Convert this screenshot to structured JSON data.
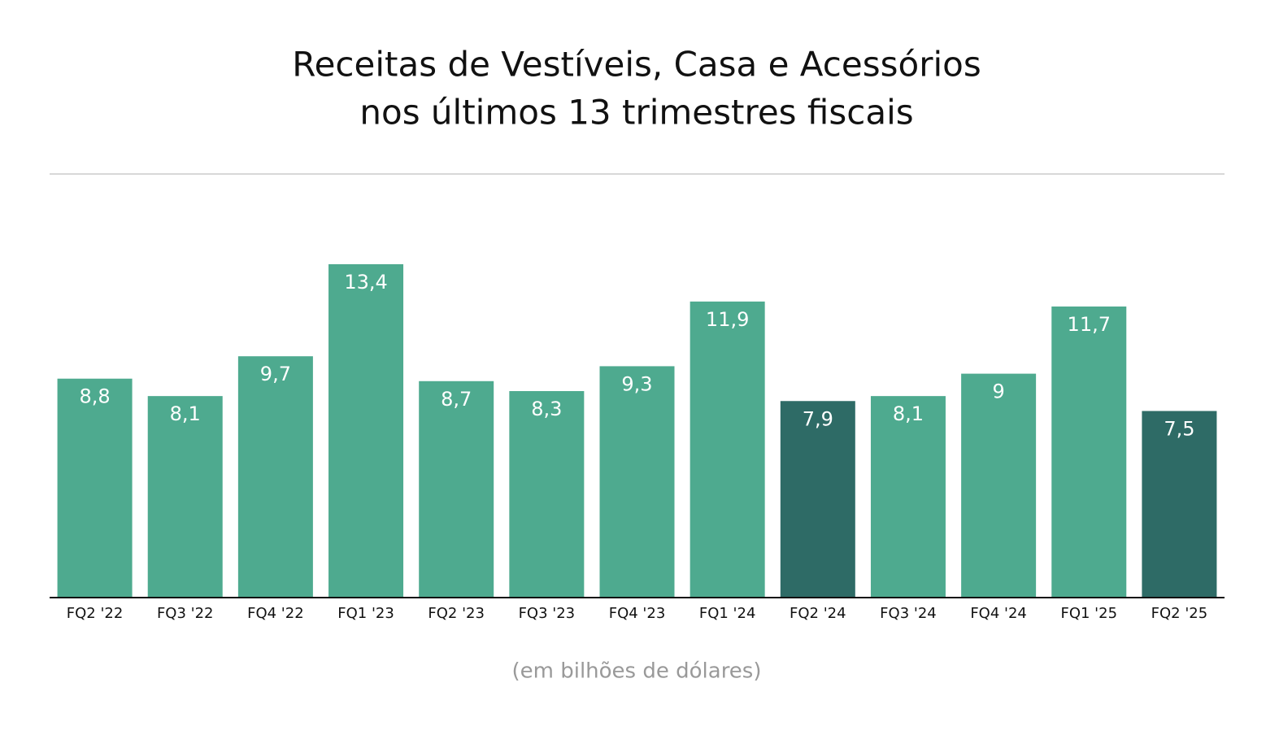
{
  "chart_data": {
    "type": "bar",
    "title": [
      "Receitas de Vestíveis, Casa e Acessórios",
      "nos últimos 13 trimestres fiscais"
    ],
    "unit_label": "(em bilhões de dólares)",
    "categories": [
      "FQ2 '22",
      "FQ3 '22",
      "FQ4 '22",
      "FQ1 '23",
      "FQ2 '23",
      "FQ3 '23",
      "FQ4 '23",
      "FQ1 '24",
      "FQ2 '24",
      "FQ3 '24",
      "FQ4 '24",
      "FQ1 '25",
      "FQ2 '25"
    ],
    "values": [
      8.8,
      8.1,
      9.7,
      13.4,
      8.7,
      8.3,
      9.3,
      11.9,
      7.9,
      8.1,
      9,
      11.7,
      7.5
    ],
    "value_labels": [
      "8,8",
      "8,1",
      "9,7",
      "13,4",
      "8,7",
      "8,3",
      "9,3",
      "11,9",
      "7,9",
      "8,1",
      "9",
      "11,7",
      "7,5"
    ],
    "colors": [
      "#4eaa8f",
      "#4eaa8f",
      "#4eaa8f",
      "#4eaa8f",
      "#4eaa8f",
      "#4eaa8f",
      "#4eaa8f",
      "#4eaa8f",
      "#2e6b66",
      "#4eaa8f",
      "#4eaa8f",
      "#4eaa8f",
      "#2e6b66"
    ],
    "ylim": [
      0,
      15
    ],
    "grid": false
  }
}
